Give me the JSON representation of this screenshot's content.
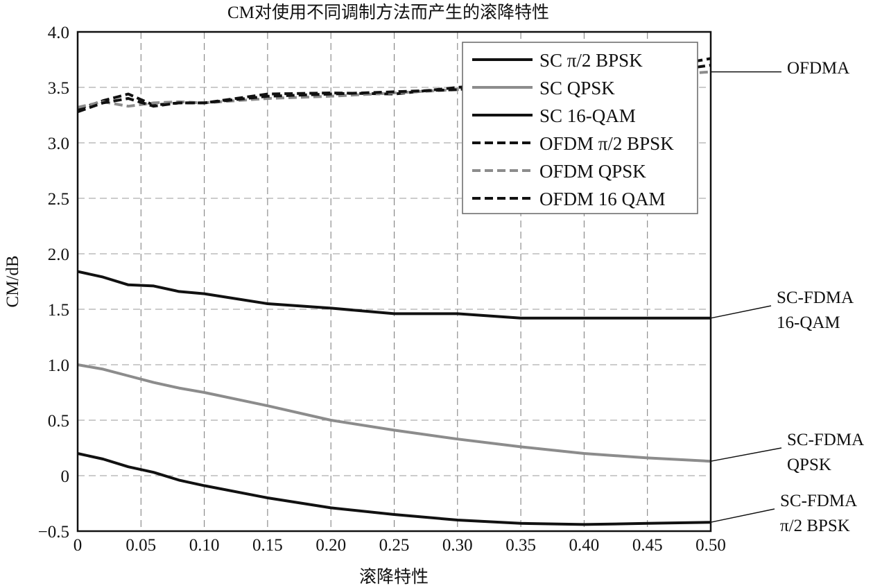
{
  "chart_data": {
    "type": "line",
    "title": "CM对使用不同调制方法而产生的滚降特性",
    "xlabel": "滚降特性",
    "ylabel": "CM/dB",
    "xlim": [
      0,
      0.5
    ],
    "ylim": [
      -0.5,
      4.0
    ],
    "grid": true,
    "legend_position": "top-right",
    "x_ticks": [
      "0",
      "0.05",
      "0.10",
      "0.15",
      "0.20",
      "0.25",
      "0.30",
      "0.35",
      "0.40",
      "0.45",
      "0.50"
    ],
    "y_ticks": [
      "−0.5",
      "0",
      "0.5",
      "1.0",
      "1.5",
      "2.0",
      "2.5",
      "3.0",
      "3.5",
      "4.0"
    ],
    "x": [
      0,
      0.02,
      0.04,
      0.06,
      0.08,
      0.1,
      0.15,
      0.2,
      0.25,
      0.3,
      0.35,
      0.4,
      0.45,
      0.5
    ],
    "series": [
      {
        "name": "SC π/2 BPSK",
        "color": "#111111",
        "dash": false,
        "values": [
          0.2,
          0.15,
          0.08,
          0.03,
          -0.04,
          -0.09,
          -0.2,
          -0.29,
          -0.35,
          -0.4,
          -0.43,
          -0.44,
          -0.43,
          -0.42
        ]
      },
      {
        "name": "SC QPSK",
        "color": "#8c8c8c",
        "dash": false,
        "values": [
          1.0,
          0.96,
          0.9,
          0.84,
          0.79,
          0.75,
          0.63,
          0.5,
          0.41,
          0.33,
          0.26,
          0.2,
          0.16,
          0.13
        ]
      },
      {
        "name": "SC 16-QAM",
        "color": "#111111",
        "dash": false,
        "values": [
          1.84,
          1.79,
          1.72,
          1.71,
          1.66,
          1.64,
          1.55,
          1.51,
          1.46,
          1.46,
          1.42,
          1.42,
          1.42,
          1.42
        ]
      },
      {
        "name": "OFDM π/2 BPSK",
        "color": "#111111",
        "dash": true,
        "values": [
          3.3,
          3.38,
          3.44,
          3.34,
          3.36,
          3.36,
          3.44,
          3.45,
          3.44,
          3.5,
          3.54,
          3.58,
          3.66,
          3.76
        ]
      },
      {
        "name": "OFDM QPSK",
        "color": "#8c8c8c",
        "dash": true,
        "values": [
          3.32,
          3.37,
          3.33,
          3.36,
          3.37,
          3.36,
          3.4,
          3.42,
          3.45,
          3.48,
          3.52,
          3.56,
          3.6,
          3.64
        ]
      },
      {
        "name": "OFDM 16 QAM",
        "color": "#111111",
        "dash": true,
        "values": [
          3.28,
          3.36,
          3.4,
          3.33,
          3.36,
          3.36,
          3.42,
          3.44,
          3.46,
          3.48,
          3.53,
          3.57,
          3.62,
          3.7
        ]
      }
    ],
    "annotations": [
      {
        "lines": [
          "OFDMA"
        ],
        "x": 0.5,
        "y": 3.64
      },
      {
        "lines": [
          "SC-FDMA",
          "16-QAM"
        ],
        "x": 0.5,
        "y": 1.42
      },
      {
        "lines": [
          "SC-FDMA",
          "QPSK"
        ],
        "x": 0.5,
        "y": 0.13
      },
      {
        "lines": [
          "SC-FDMA",
          "π/2 BPSK"
        ],
        "x": 0.5,
        "y": -0.42
      }
    ]
  }
}
